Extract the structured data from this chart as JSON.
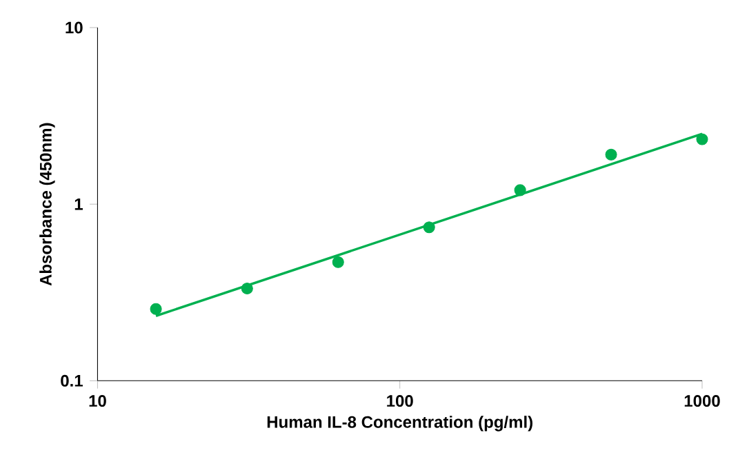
{
  "chart_data": {
    "type": "scatter",
    "xlabel": "Human IL-8 Concentration (pg/ml)",
    "ylabel": "Absorbance (450nm)",
    "log": "xy",
    "xlim": [
      10,
      1000
    ],
    "ylim": [
      0.1,
      10
    ],
    "xticks": [
      10,
      100,
      1000
    ],
    "yticks": [
      0.1,
      1,
      10
    ],
    "series": [
      {
        "marker": "circle",
        "color": "#00b050",
        "x": [
          15.6,
          31.25,
          62.5,
          125,
          250,
          500,
          1000
        ],
        "values": [
          0.255,
          0.333,
          0.47,
          0.74,
          1.2,
          1.91,
          2.33
        ]
      },
      {
        "type": "line",
        "marker": "none",
        "line_style": "solid",
        "color": "#00b050",
        "x": [
          15.6,
          1000
        ],
        "values": [
          0.233,
          2.5
        ]
      }
    ]
  }
}
